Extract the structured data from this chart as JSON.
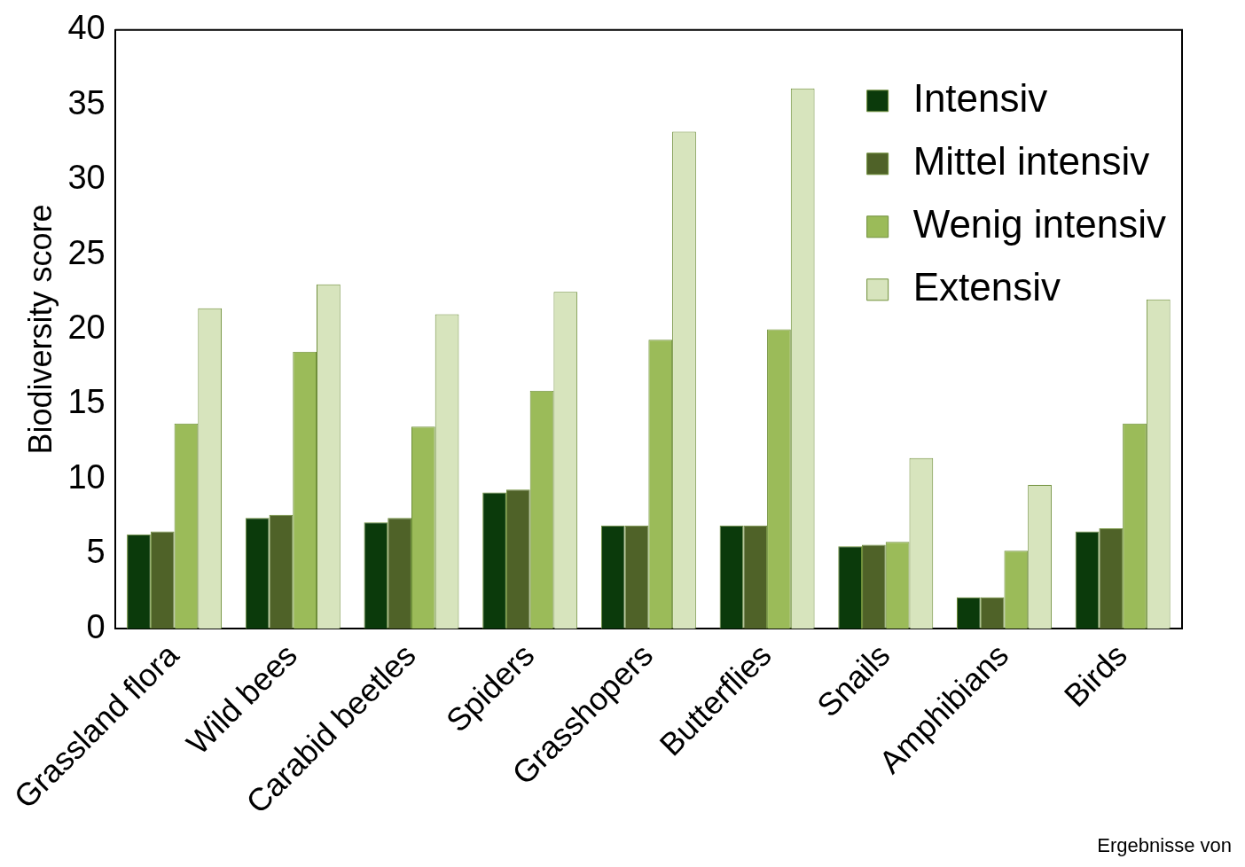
{
  "chart_data": {
    "type": "bar",
    "ylabel": "Biodiversity score",
    "categories": [
      "Grassland flora",
      "Wild bees",
      "Carabid beetles",
      "Spiders",
      "Grasshopers",
      "Butterflies",
      "Snails",
      "Amphibians",
      "Birds"
    ],
    "series": [
      {
        "name": "Intensiv",
        "color": "#0b3a0b",
        "values": [
          6.3,
          7.4,
          7.1,
          9.1,
          6.9,
          6.9,
          5.5,
          2.1,
          6.5
        ]
      },
      {
        "name": "Mittel intensiv",
        "color": "#4f6228",
        "values": [
          6.5,
          7.6,
          7.4,
          9.3,
          6.9,
          6.9,
          5.6,
          2.1,
          6.7
        ]
      },
      {
        "name": "Wenig intensiv",
        "color": "#9bbb59",
        "values": [
          13.7,
          18.5,
          13.5,
          15.9,
          19.3,
          20.0,
          5.8,
          5.2,
          13.7
        ]
      },
      {
        "name": "Extensiv",
        "color": "#d7e4bd",
        "values": [
          21.4,
          23.0,
          21.0,
          22.5,
          33.2,
          36.1,
          11.4,
          9.6,
          22.0
        ]
      }
    ],
    "ylim": [
      0,
      40
    ],
    "yticks": [
      0,
      5,
      10,
      15,
      20,
      25,
      30,
      35,
      40
    ],
    "grid": false,
    "legend": "top right",
    "annotations": [
      "Ergebnisse von"
    ]
  }
}
